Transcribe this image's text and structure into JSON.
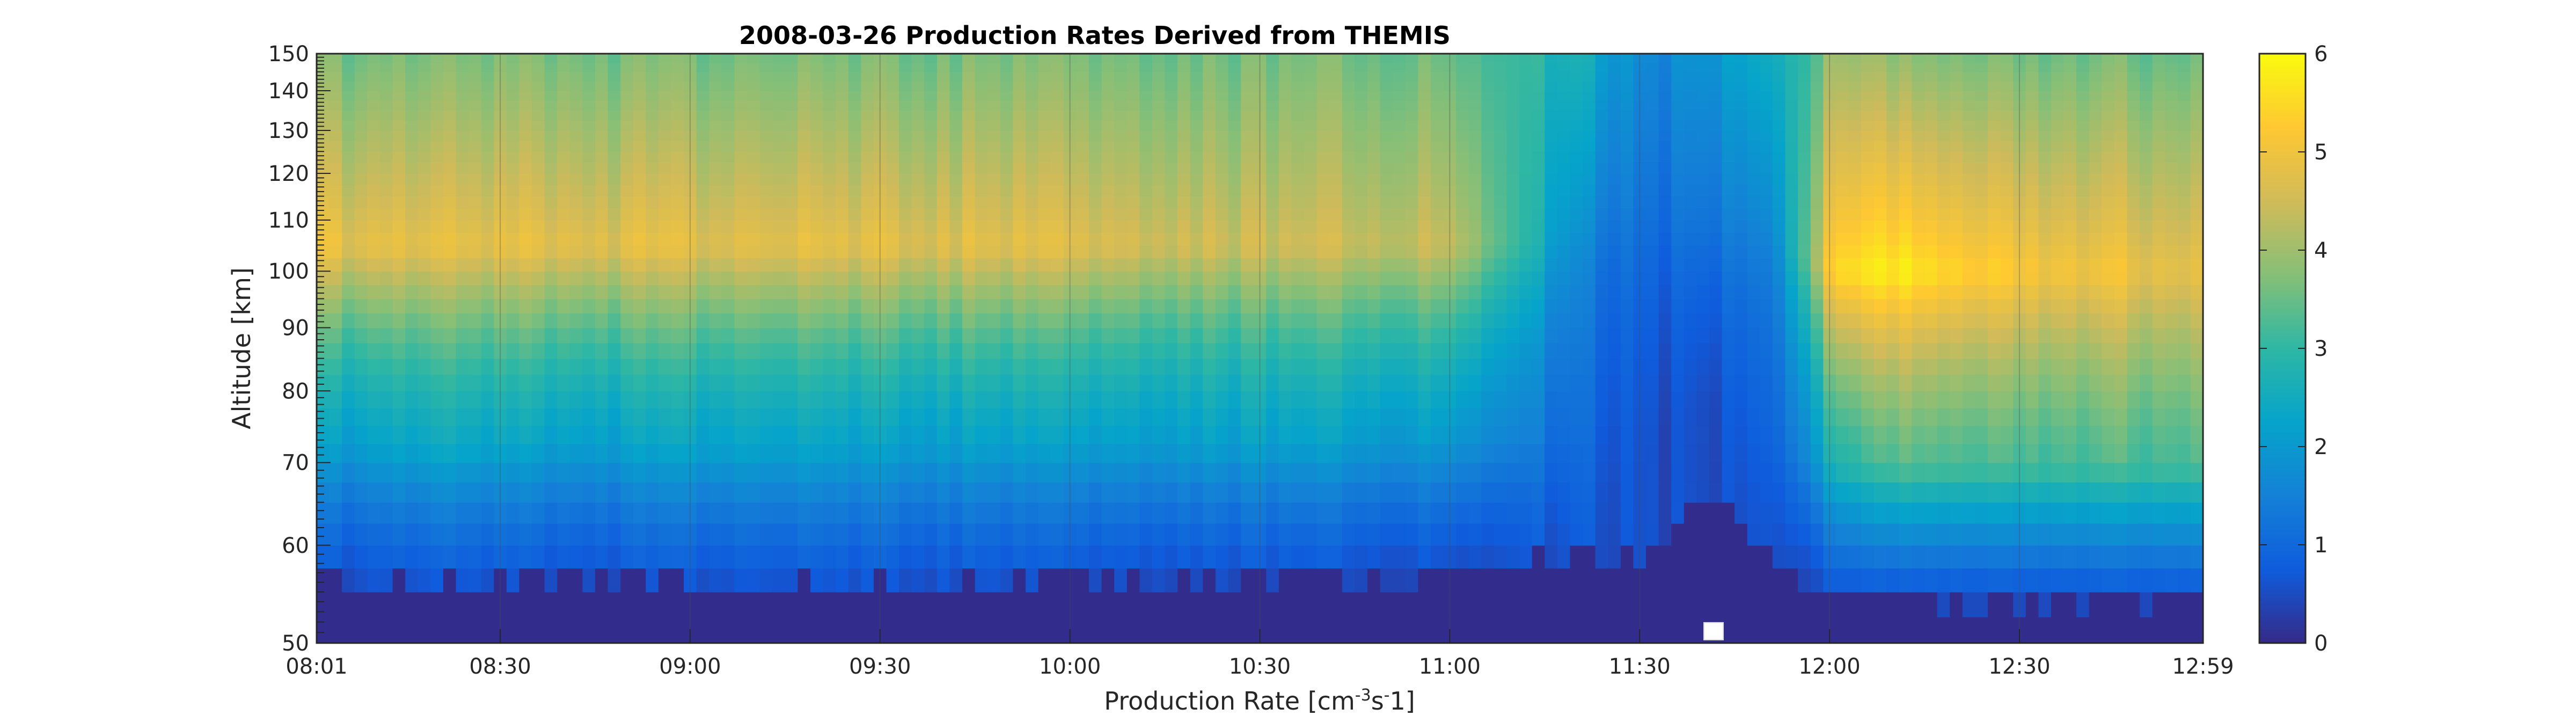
{
  "chart_data": {
    "type": "heatmap",
    "title": "2008-03-26 Production Rates Derived from  THEMIS",
    "xlabel": {
      "text": "Production Rate [cm",
      "sup1": "-3",
      "mid": "s",
      "sup2": "-",
      "end": "1]"
    },
    "ylabel": "Altitude [km]",
    "x_range": [
      "08:01",
      "12:59"
    ],
    "x_ticks": [
      "08:01",
      "08:30",
      "09:00",
      "09:30",
      "10:00",
      "10:30",
      "11:00",
      "11:30",
      "12:00",
      "12:30",
      "12:59"
    ],
    "x_tick_minutes": [
      0,
      29,
      59,
      89,
      119,
      149,
      179,
      209,
      239,
      269,
      298
    ],
    "y_ticks": [
      50,
      60,
      70,
      80,
      90,
      100,
      110,
      120,
      130,
      140,
      150
    ],
    "ylim": [
      50,
      150
    ],
    "y_scale": "log",
    "grid": "vertical lines at x ticks",
    "colorbar": {
      "range": [
        0,
        6
      ],
      "ticks": [
        0,
        1,
        2,
        3,
        4,
        5,
        6
      ],
      "colormap": "parula"
    },
    "profile_model": {
      "description": "approximate color value by time and altitude",
      "time_minutes": [
        0,
        20,
        40,
        60,
        90,
        120,
        150,
        180,
        200,
        210,
        220,
        230,
        240,
        250,
        270,
        298
      ],
      "floor_altitude_km": [
        55,
        54,
        55,
        54,
        54,
        55,
        55,
        56,
        57,
        57,
        66,
        57,
        53,
        53,
        53,
        53
      ],
      "peak_value": [
        4.9,
        4.8,
        4.8,
        4.8,
        4.8,
        4.7,
        4.5,
        4.5,
        1.5,
        1.0,
        1.2,
        1.5,
        5.6,
        5.8,
        5.2,
        4.8
      ],
      "peak_altitude_km": [
        105,
        105,
        105,
        105,
        105,
        105,
        105,
        105,
        105,
        105,
        105,
        105,
        100,
        100,
        100,
        100
      ],
      "top_value": [
        3.6,
        3.6,
        3.6,
        3.6,
        3.6,
        3.6,
        3.6,
        3.6,
        2.5,
        1.6,
        2.0,
        2.5,
        4.0,
        3.8,
        3.6,
        3.5
      ],
      "low_value": [
        1.5,
        1.8,
        1.6,
        1.7,
        1.6,
        1.6,
        1.7,
        1.6,
        0.8,
        0.5,
        0.5,
        0.8,
        2.2,
        2.8,
        2.8,
        2.9
      ]
    },
    "palette": [
      "#352a87",
      "#0f5cdd",
      "#1481d6",
      "#06a4ca",
      "#2eb7a4",
      "#87bf77",
      "#d1bb59",
      "#fec832",
      "#f9fb0e"
    ]
  }
}
